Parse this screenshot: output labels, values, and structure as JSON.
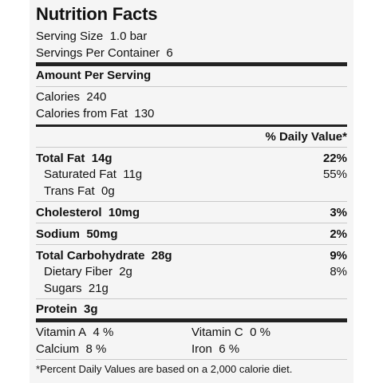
{
  "title": "Nutrition Facts",
  "serving": {
    "size_label": "Serving Size",
    "size_value": "1.0 bar",
    "per_container_label": "Servings Per Container",
    "per_container_value": "6"
  },
  "amount_header": "Amount Per Serving",
  "calories": {
    "label": "Calories",
    "value": "240",
    "from_fat_label": "Calories from Fat",
    "from_fat_value": "130"
  },
  "dv_header": "% Daily Value*",
  "nutrients": {
    "total_fat": {
      "label": "Total Fat",
      "amount": "14g",
      "dv": "22%"
    },
    "saturated_fat": {
      "label": "Saturated Fat",
      "amount": "11g",
      "dv": "55%"
    },
    "trans_fat": {
      "label": "Trans Fat",
      "amount": "0g"
    },
    "cholesterol": {
      "label": "Cholesterol",
      "amount": "10mg",
      "dv": "3%"
    },
    "sodium": {
      "label": "Sodium",
      "amount": "50mg",
      "dv": "2%"
    },
    "total_carb": {
      "label": "Total Carbohydrate",
      "amount": "28g",
      "dv": "9%"
    },
    "dietary_fiber": {
      "label": "Dietary Fiber",
      "amount": "2g",
      "dv": "8%"
    },
    "sugars": {
      "label": "Sugars",
      "amount": "21g"
    },
    "protein": {
      "label": "Protein",
      "amount": "3g"
    }
  },
  "vitamins": {
    "vitamin_a": {
      "label": "Vitamin A",
      "value": "4 %"
    },
    "vitamin_c": {
      "label": "Vitamin C",
      "value": "0 %"
    },
    "calcium": {
      "label": "Calcium",
      "value": "8 %"
    },
    "iron": {
      "label": "Iron",
      "value": "6 %"
    }
  },
  "footnote": "*Percent Daily Values are based on a 2,000 calorie diet."
}
